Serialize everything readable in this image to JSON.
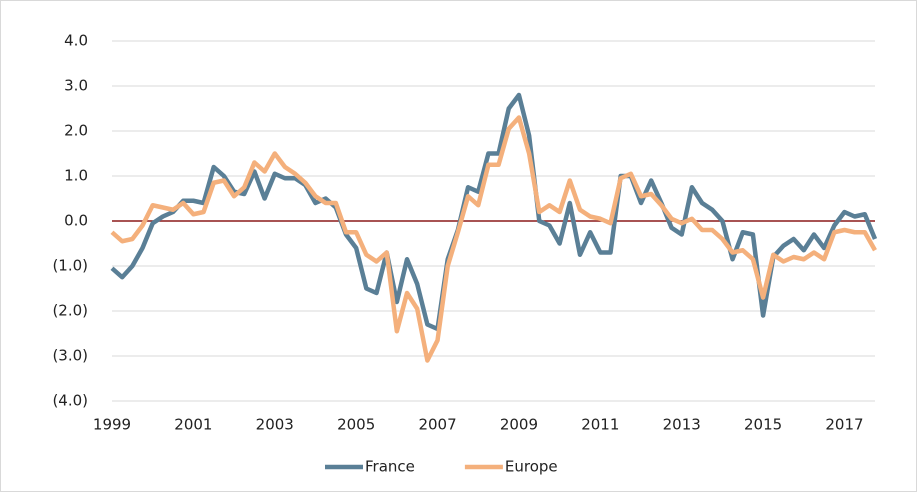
{
  "chart_data": {
    "type": "line",
    "x": [
      1999,
      1999.25,
      1999.5,
      1999.75,
      2000,
      2000.25,
      2000.5,
      2000.75,
      2001,
      2001.25,
      2001.5,
      2001.75,
      2002,
      2002.25,
      2002.5,
      2002.75,
      2003,
      2003.25,
      2003.5,
      2003.75,
      2004,
      2004.25,
      2004.5,
      2004.75,
      2005,
      2005.25,
      2005.5,
      2005.75,
      2006,
      2006.25,
      2006.5,
      2006.75,
      2007,
      2007.25,
      2007.5,
      2007.75,
      2008,
      2008.25,
      2008.5,
      2008.75,
      2009,
      2009.25,
      2009.5,
      2009.75,
      2010,
      2010.25,
      2010.5,
      2010.75,
      2011,
      2011.25,
      2011.5,
      2011.75,
      2012,
      2012.25,
      2012.5,
      2012.75,
      2013,
      2013.25,
      2013.5,
      2013.75,
      2014,
      2014.25,
      2014.5,
      2014.75,
      2015,
      2015.25,
      2015.5,
      2015.75,
      2016,
      2016.25,
      2016.5,
      2016.75,
      2017,
      2017.25,
      2017.5,
      2017.75
    ],
    "series": [
      {
        "name": "France",
        "color": "#5a7f96",
        "values": [
          -1.05,
          -1.25,
          -1.0,
          -0.6,
          -0.05,
          0.1,
          0.2,
          0.45,
          0.45,
          0.4,
          1.2,
          1.0,
          0.65,
          0.6,
          1.1,
          0.5,
          1.05,
          0.95,
          0.95,
          0.8,
          0.4,
          0.5,
          0.3,
          -0.3,
          -0.6,
          -1.5,
          -1.6,
          -0.7,
          -1.8,
          -0.85,
          -1.4,
          -2.3,
          -2.4,
          -0.85,
          -0.2,
          0.75,
          0.65,
          1.5,
          1.5,
          2.5,
          2.8,
          1.9,
          0.0,
          -0.1,
          -0.5,
          0.4,
          -0.75,
          -0.25,
          -0.7,
          -0.7,
          1.0,
          1.0,
          0.4,
          0.9,
          0.4,
          -0.15,
          -0.3,
          0.75,
          0.4,
          0.25,
          0.0,
          -0.85,
          -0.25,
          -0.3,
          -2.1,
          -0.8,
          -0.55,
          -0.4,
          -0.65,
          -0.3,
          -0.6,
          -0.1,
          0.2,
          0.1,
          0.15,
          -0.4
        ]
      },
      {
        "name": "Europe",
        "color": "#f4b07c",
        "values": [
          -0.25,
          -0.45,
          -0.4,
          -0.1,
          0.35,
          0.3,
          0.25,
          0.4,
          0.15,
          0.2,
          0.85,
          0.9,
          0.55,
          0.75,
          1.3,
          1.1,
          1.5,
          1.2,
          1.05,
          0.85,
          0.55,
          0.4,
          0.4,
          -0.25,
          -0.25,
          -0.75,
          -0.9,
          -0.7,
          -2.45,
          -1.6,
          -1.95,
          -3.1,
          -2.65,
          -1.0,
          -0.25,
          0.55,
          0.35,
          1.25,
          1.25,
          2.05,
          2.3,
          1.5,
          0.2,
          0.35,
          0.2,
          0.9,
          0.25,
          0.1,
          0.05,
          -0.05,
          0.95,
          1.05,
          0.55,
          0.6,
          0.35,
          0.05,
          -0.05,
          0.05,
          -0.2,
          -0.2,
          -0.4,
          -0.7,
          -0.65,
          -0.85,
          -1.7,
          -0.75,
          -0.9,
          -0.8,
          -0.85,
          -0.7,
          -0.85,
          -0.25,
          -0.2,
          -0.25,
          -0.25,
          -0.65
        ]
      }
    ],
    "xlim": [
      1999,
      2017.75
    ],
    "xticks": [
      1999,
      2001,
      2003,
      2005,
      2007,
      2009,
      2011,
      2013,
      2015,
      2017
    ],
    "ylim": [
      -4,
      4
    ],
    "yticks": [
      {
        "value": -4,
        "label": "(4.0)"
      },
      {
        "value": -3,
        "label": "(3.0)"
      },
      {
        "value": -2,
        "label": "(2.0)"
      },
      {
        "value": -1,
        "label": "(1.0)"
      },
      {
        "value": 0,
        "label": "0.0"
      },
      {
        "value": 1,
        "label": "1.0"
      },
      {
        "value": 2,
        "label": "2.0"
      },
      {
        "value": 3,
        "label": "3.0"
      },
      {
        "value": 4,
        "label": "4.0"
      }
    ],
    "grid": true,
    "zero_line_color": "#8b1a1a",
    "legend": "bottom"
  }
}
